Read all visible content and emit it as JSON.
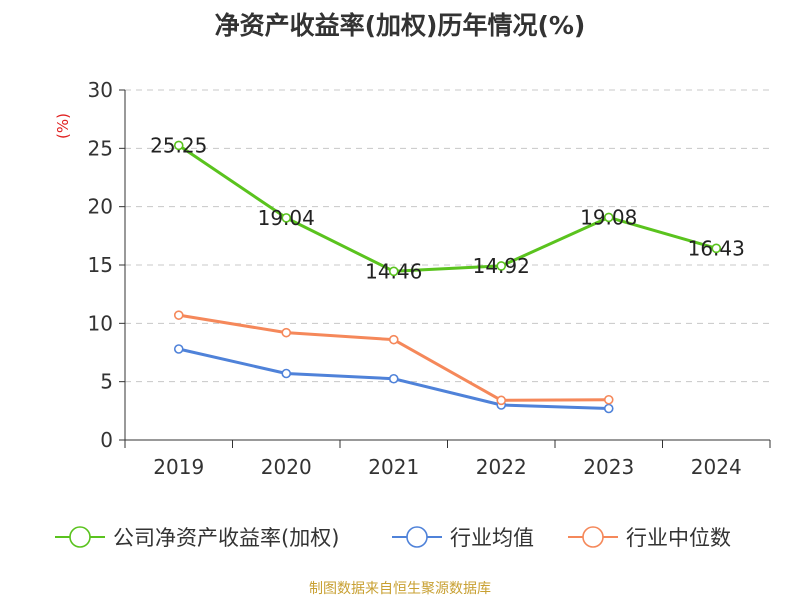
{
  "chart_data": {
    "type": "line",
    "title": "净资产收益率(加权)历年情况(%)",
    "ylabel": "(%)",
    "categories": [
      "2019",
      "2020",
      "2021",
      "2022",
      "2023",
      "2024"
    ],
    "ylim": [
      0,
      30
    ],
    "yticks": [
      0,
      5,
      10,
      15,
      20,
      25,
      30
    ],
    "grid": "horizontal dashed",
    "legend_position": "bottom",
    "series": [
      {
        "name": "公司净资产收益率(加权)",
        "color": "#5ac31e",
        "values": [
          25.25,
          19.04,
          14.46,
          14.92,
          19.08,
          16.43
        ],
        "labels": [
          "25.25",
          "19.04",
          "14.46",
          "14.92",
          "19.08",
          "16.43"
        ]
      },
      {
        "name": "行业均值",
        "color": "#4f82d9",
        "values": [
          7.8,
          5.7,
          5.25,
          3.0,
          2.7,
          null
        ]
      },
      {
        "name": "行业中位数",
        "color": "#f5885a",
        "values": [
          10.7,
          9.2,
          8.6,
          3.4,
          3.45,
          null
        ]
      }
    ]
  },
  "source": "制图数据来自恒生聚源数据库"
}
